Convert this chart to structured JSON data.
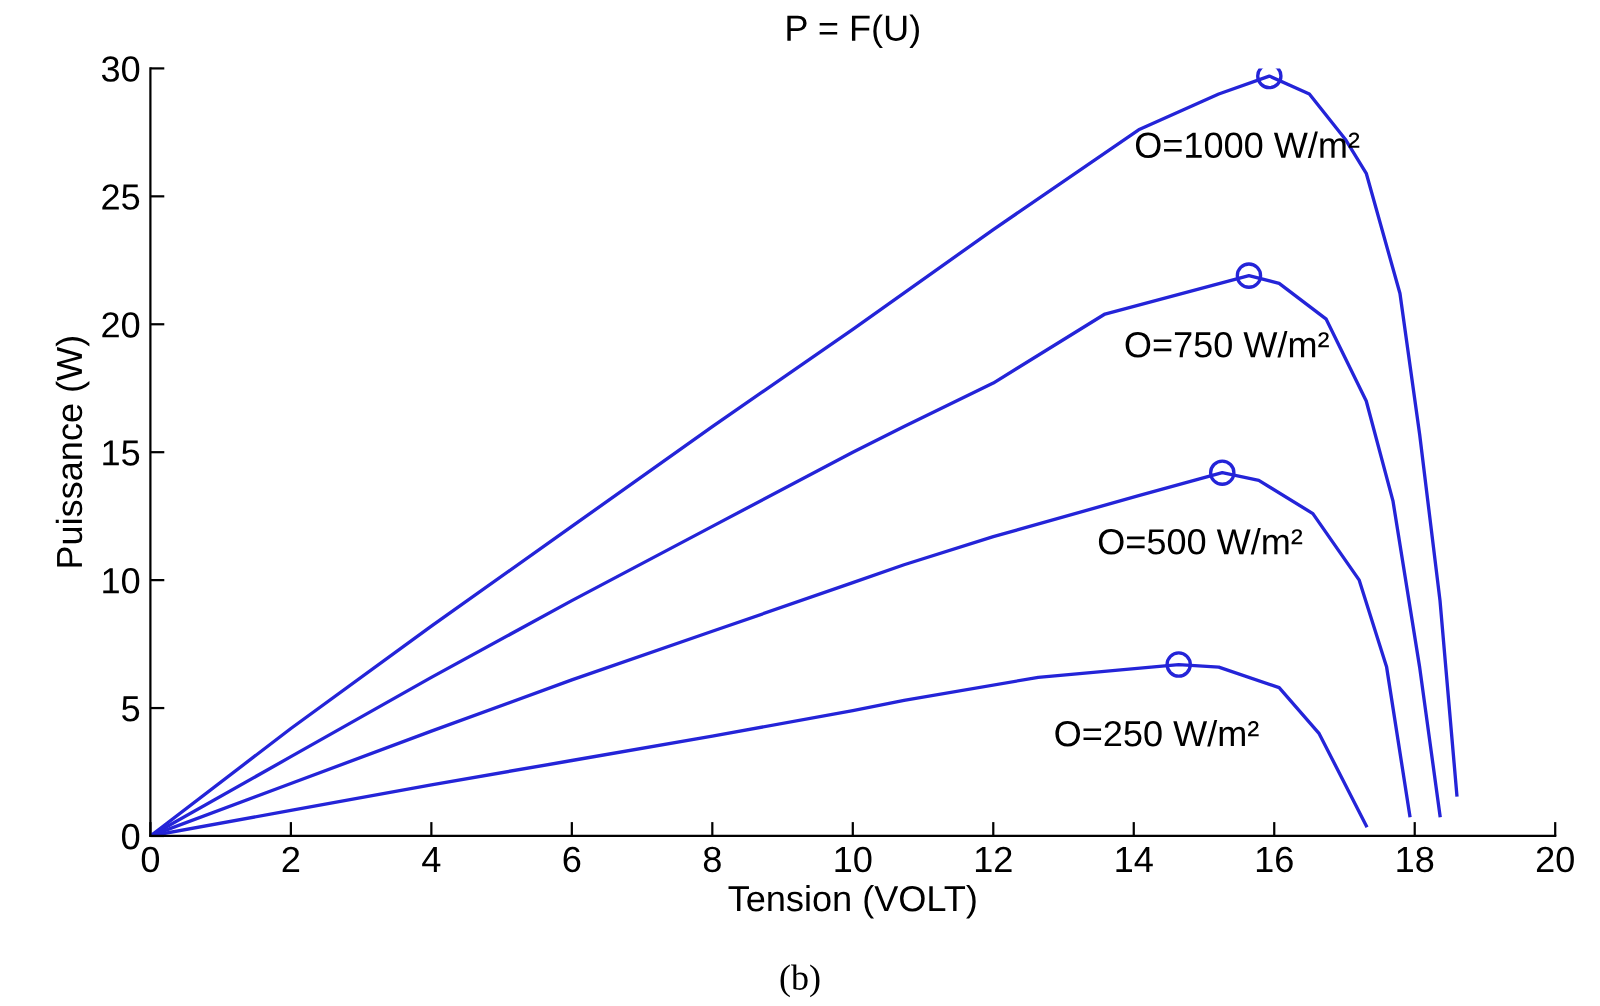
{
  "chart_data": {
    "type": "line",
    "title": "P = F(U)",
    "xlabel": "Tension (VOLT)",
    "ylabel": "Puissance (W)",
    "xlim": [
      0,
      20
    ],
    "xticks": [
      0,
      2,
      4,
      6,
      8,
      10,
      12,
      14,
      16,
      18,
      20
    ],
    "ylim": [
      0,
      30
    ],
    "yticks": [
      0,
      5,
      10,
      15,
      20,
      25,
      30
    ],
    "grid": false,
    "marker": "none",
    "line_style": "solid",
    "series": [
      {
        "name": "O=1000 W/m²",
        "color": "#2424d8",
        "x": [
          0,
          2,
          4,
          6,
          8,
          10,
          12,
          14.07,
          15.21,
          15.93,
          16.5,
          17.02,
          17.31,
          17.79,
          18.07,
          18.36,
          18.6
        ],
        "values": [
          0,
          4.2,
          8.2,
          12.1,
          16.0,
          19.8,
          23.7,
          27.6,
          29.0,
          29.7,
          29.0,
          27.2,
          25.9,
          21.2,
          15.7,
          9.2,
          1.6
        ]
      },
      {
        "name": "O=750 W/m²",
        "color": "#2424d8",
        "x": [
          0,
          2,
          4,
          6,
          8,
          10,
          10.73,
          12,
          13.59,
          15.64,
          16.07,
          16.74,
          17.31,
          17.69,
          18.07,
          18.36
        ],
        "values": [
          0,
          3.1,
          6.2,
          9.2,
          12.1,
          15.0,
          16.0,
          17.7,
          20.4,
          21.9,
          21.6,
          20.2,
          17.0,
          13.1,
          6.6,
          0.8
        ]
      },
      {
        "name": "O=500 W/m²",
        "color": "#2424d8",
        "x": [
          0,
          2,
          4,
          6,
          8,
          10,
          10.73,
          12,
          14.07,
          15.26,
          15.78,
          16.55,
          17.21,
          17.6,
          17.93
        ],
        "values": [
          0,
          2.05,
          4.1,
          6.1,
          8.0,
          9.9,
          10.6,
          11.7,
          13.3,
          14.2,
          13.9,
          12.6,
          10.0,
          6.6,
          0.8
        ]
      },
      {
        "name": "O=250 W/m²",
        "color": "#2424d8",
        "x": [
          0,
          2,
          4,
          6,
          8,
          10,
          10.73,
          12.64,
          14.64,
          15.21,
          16.07,
          16.64,
          17.31
        ],
        "values": [
          0,
          1.0,
          2.0,
          2.95,
          3.9,
          4.9,
          5.3,
          6.2,
          6.7,
          6.6,
          5.8,
          4.0,
          0.4
        ]
      },
      {
        "type": "scatter",
        "marker": "circle",
        "color": "#2424d8",
        "x": [
          15.93,
          15.64,
          15.26,
          14.64
        ],
        "values": [
          29.7,
          21.9,
          14.2,
          6.7
        ]
      }
    ],
    "annotations": [
      "(b)"
    ]
  }
}
